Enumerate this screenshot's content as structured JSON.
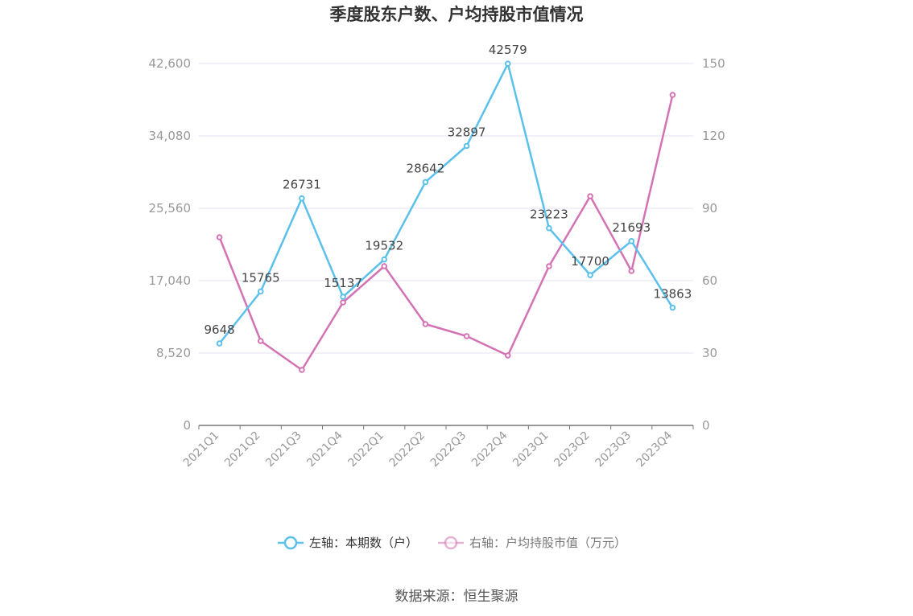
{
  "chart_data": {
    "type": "line",
    "title": "季度股东户数、户均持股市值情况",
    "categories": [
      "2021Q1",
      "2021Q2",
      "2021Q3",
      "2021Q4",
      "2022Q1",
      "2022Q2",
      "2022Q3",
      "2022Q4",
      "2023Q1",
      "2023Q2",
      "2023Q3",
      "2023Q4"
    ],
    "series": [
      {
        "name": "左轴：本期数（户）",
        "axis": "left",
        "color": "#5bc0eb",
        "values": [
          9648,
          15765,
          26731,
          15137,
          19532,
          28642,
          32897,
          42579,
          23223,
          17700,
          21693,
          13863
        ],
        "data_labels": [
          "9648",
          "15765",
          "26731",
          "15137",
          "19532",
          "28642",
          "32897",
          "42579",
          "23223",
          "17700",
          "21693",
          "13863"
        ]
      },
      {
        "name": "右轴：户均持股市值（万元）",
        "axis": "right",
        "color": "#d473b4",
        "values": [
          78,
          35,
          23,
          51,
          66,
          42,
          37,
          29,
          66,
          95,
          64,
          137
        ]
      }
    ],
    "y_left": {
      "ylim": [
        0,
        42600
      ],
      "ticks": [
        "0",
        "8,520",
        "17,040",
        "25,560",
        "34,080",
        "42,600"
      ]
    },
    "y_right": {
      "ylim": [
        0,
        150
      ],
      "ticks": [
        "0",
        "30",
        "60",
        "90",
        "120",
        "150"
      ]
    },
    "grid": true,
    "legend_position": "bottom"
  },
  "source": "数据来源：恒生聚源"
}
